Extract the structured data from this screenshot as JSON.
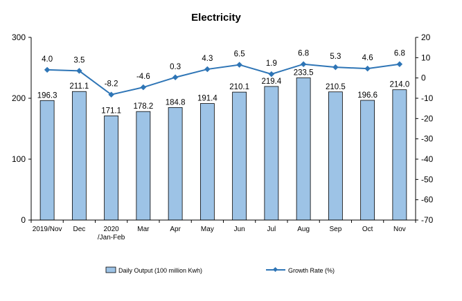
{
  "chart_data": {
    "type": "bar+line",
    "title": "Electricity",
    "categories": [
      "2019/Nov",
      "Dec",
      "2020 /Jan-Feb",
      "Mar",
      "Apr",
      "May",
      "Jun",
      "Jul",
      "Aug",
      "Sep",
      "Oct",
      "Nov"
    ],
    "series": [
      {
        "name": "Daily Output (100 million Kwh)",
        "type": "bar",
        "axis": "left",
        "values": [
          196.3,
          211.1,
          171.1,
          178.2,
          184.8,
          191.4,
          210.1,
          219.4,
          233.5,
          210.5,
          196.6,
          214.0
        ],
        "labels": [
          "196.3",
          "211.1",
          "171.1",
          "178.2",
          "184.8",
          "191.4",
          "210.1",
          "219.4",
          "233.5",
          "210.5",
          "196.6",
          "214.0"
        ]
      },
      {
        "name": "Growth Rate (%)",
        "type": "line",
        "axis": "right",
        "values": [
          4.0,
          3.5,
          -8.2,
          -4.6,
          0.3,
          4.3,
          6.5,
          1.9,
          6.8,
          5.3,
          4.6,
          6.8
        ],
        "labels": [
          "4.0",
          "3.5",
          "-8.2",
          "-4.6",
          "0.3",
          "4.3",
          "6.5",
          "1.9",
          "6.8",
          "5.3",
          "4.6",
          "6.8"
        ]
      }
    ],
    "y_left": {
      "min": 0,
      "max": 300,
      "ticks": [
        0,
        100,
        200,
        300
      ]
    },
    "y_right": {
      "min": -70,
      "max": 20,
      "ticks": [
        20,
        10,
        0,
        -10,
        -20,
        -30,
        -40,
        -50,
        -60,
        -70
      ]
    },
    "legend_position": "bottom",
    "grid": false,
    "colors": {
      "bar": "#9dc3e6",
      "line": "#2e75b6"
    }
  }
}
